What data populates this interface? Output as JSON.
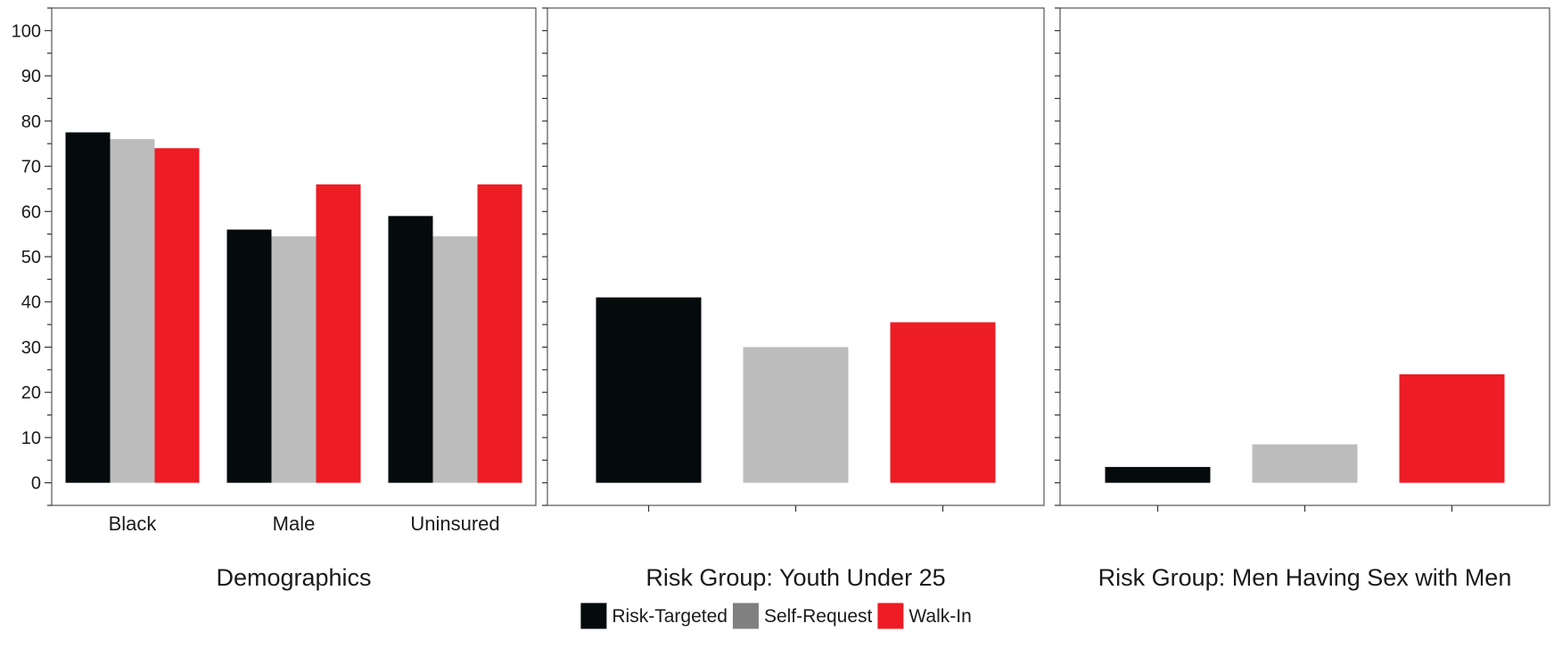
{
  "chart_data": {
    "type": "bar",
    "y_axis": {
      "ylim": [
        -5,
        105
      ],
      "ticks": [
        0,
        10,
        20,
        30,
        40,
        50,
        60,
        70,
        80,
        90,
        100
      ],
      "tick_labels": [
        "0",
        "10",
        "20",
        "30",
        "40",
        "50",
        "60",
        "70",
        "80",
        "90",
        "100"
      ]
    },
    "grid": false,
    "legend": {
      "placement": "bottom-center",
      "items": [
        {
          "label": "Risk-Targeted",
          "color": "#050a0c"
        },
        {
          "label": "Self-Request",
          "color": "#808080"
        },
        {
          "label": "Walk-In",
          "color": "#ee1c24"
        }
      ]
    },
    "series_colors": [
      "#050a0c",
      "#bcbcbc",
      "#ee1c24"
    ],
    "panels": [
      {
        "title": "Demographics",
        "categories": [
          "Black",
          "Male",
          "Uninsured"
        ],
        "series": [
          {
            "name": "Risk-Targeted",
            "values": [
              77.5,
              56,
              59
            ]
          },
          {
            "name": "Self-Request",
            "values": [
              76,
              54.5,
              54.5
            ]
          },
          {
            "name": "Walk-In",
            "values": [
              74,
              66,
              66
            ]
          }
        ]
      },
      {
        "title": "Risk Group: Youth Under 25",
        "categories": [
          ""
        ],
        "series": [
          {
            "name": "Risk-Targeted",
            "values": [
              41
            ]
          },
          {
            "name": "Self-Request",
            "values": [
              30
            ]
          },
          {
            "name": "Walk-In",
            "values": [
              35.5
            ]
          }
        ]
      },
      {
        "title": "Risk Group: Men Having Sex with Men",
        "categories": [
          ""
        ],
        "series": [
          {
            "name": "Risk-Targeted",
            "values": [
              3.5
            ]
          },
          {
            "name": "Self-Request",
            "values": [
              8.5
            ]
          },
          {
            "name": "Walk-In",
            "values": [
              24
            ]
          }
        ]
      }
    ]
  }
}
